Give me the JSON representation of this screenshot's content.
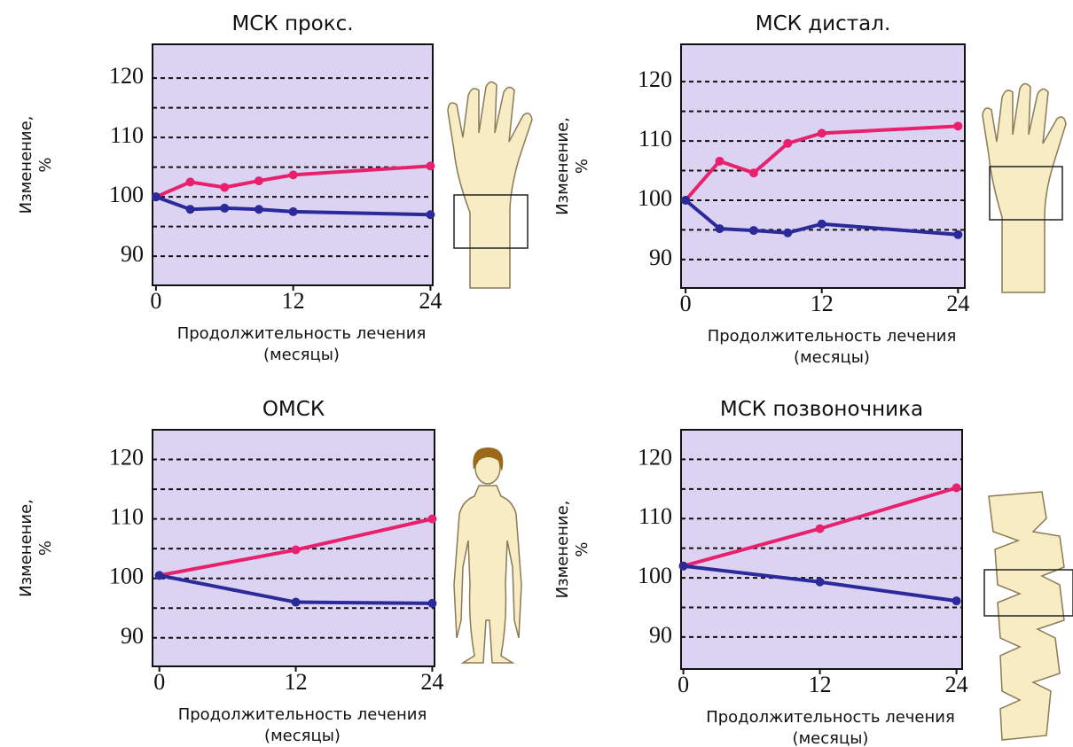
{
  "chart_data": [
    {
      "type": "line",
      "title": "МСК прокс.",
      "xlabel": [
        "Продолжительность лечения",
        "(месяцы)"
      ],
      "ylabel": [
        "Изменение,",
        "%"
      ],
      "xlim": [
        -0.3,
        24.2
      ],
      "xticks": [
        0,
        12,
        24
      ],
      "ylim": [
        85.1,
        125.7
      ],
      "yticks": [
        90,
        100,
        110,
        120
      ],
      "minor_yticks": [
        95,
        105,
        115
      ],
      "grid": true,
      "series": [
        {
          "color": "#e8206e",
          "x": [
            0,
            3,
            6,
            9,
            12,
            24
          ],
          "values": [
            100,
            102.5,
            101.6,
            102.7,
            103.7,
            105.2
          ]
        },
        {
          "color": "#2a2a9a",
          "x": [
            0,
            3,
            6,
            9,
            12,
            24
          ],
          "values": [
            100,
            97.9,
            98.1,
            97.9,
            97.5,
            97.0
          ]
        }
      ]
    },
    {
      "type": "line",
      "title": "МСК дистал.",
      "xlabel": [
        "Продолжительность лечения",
        "(месяцы)"
      ],
      "ylabel": [
        "Изменение,",
        "%"
      ],
      "xlim": [
        -0.4,
        24.6
      ],
      "xticks": [
        0,
        12,
        24
      ],
      "ylim": [
        85.2,
        126.3
      ],
      "yticks": [
        90,
        100,
        110,
        120
      ],
      "minor_yticks": [
        95,
        105,
        115
      ],
      "grid": true,
      "series": [
        {
          "color": "#e8206e",
          "x": [
            0,
            3,
            6,
            9,
            12,
            24
          ],
          "values": [
            100,
            106.6,
            104.6,
            109.6,
            111.3,
            112.5
          ]
        },
        {
          "color": "#2a2a9a",
          "x": [
            0,
            3,
            6,
            9,
            12,
            24
          ],
          "values": [
            100,
            95.2,
            94.9,
            94.5,
            96.0,
            94.2
          ]
        }
      ]
    },
    {
      "type": "line",
      "title": "ОМСК",
      "xlabel": [
        "Продолжительность лечения",
        "(месяцы)"
      ],
      "ylabel": [
        "Изменение,",
        "%"
      ],
      "xlim": [
        -0.6,
        24.2
      ],
      "xticks": [
        0,
        12,
        24
      ],
      "ylim": [
        85.2,
        125
      ],
      "yticks": [
        90,
        100,
        110,
        120
      ],
      "minor_yticks": [
        95,
        105,
        115
      ],
      "grid": true,
      "series": [
        {
          "color": "#e8206e",
          "x": [
            0,
            12,
            24
          ],
          "values": [
            100.5,
            104.8,
            110
          ]
        },
        {
          "color": "#2a2a9a",
          "x": [
            0,
            12,
            24
          ],
          "values": [
            100.5,
            96.0,
            95.8
          ]
        }
      ]
    },
    {
      "type": "line",
      "title": "МСК позвоночника",
      "xlabel": [
        "Продолжительность лечения",
        "(месяцы)"
      ],
      "ylabel": [
        "Изменение,",
        "%"
      ],
      "xlim": [
        -0.2,
        24.5
      ],
      "xticks": [
        0,
        12,
        24
      ],
      "ylim": [
        84.6,
        125
      ],
      "yticks": [
        90,
        100,
        110,
        120
      ],
      "minor_yticks": [
        95,
        105,
        115
      ],
      "grid": true,
      "series": [
        {
          "color": "#e8206e",
          "x": [
            0,
            12,
            24
          ],
          "values": [
            102,
            108.3,
            115.2
          ]
        },
        {
          "color": "#2a2a9a",
          "x": [
            0,
            12,
            24
          ],
          "values": [
            102,
            99.3,
            96.1
          ]
        }
      ]
    }
  ]
}
